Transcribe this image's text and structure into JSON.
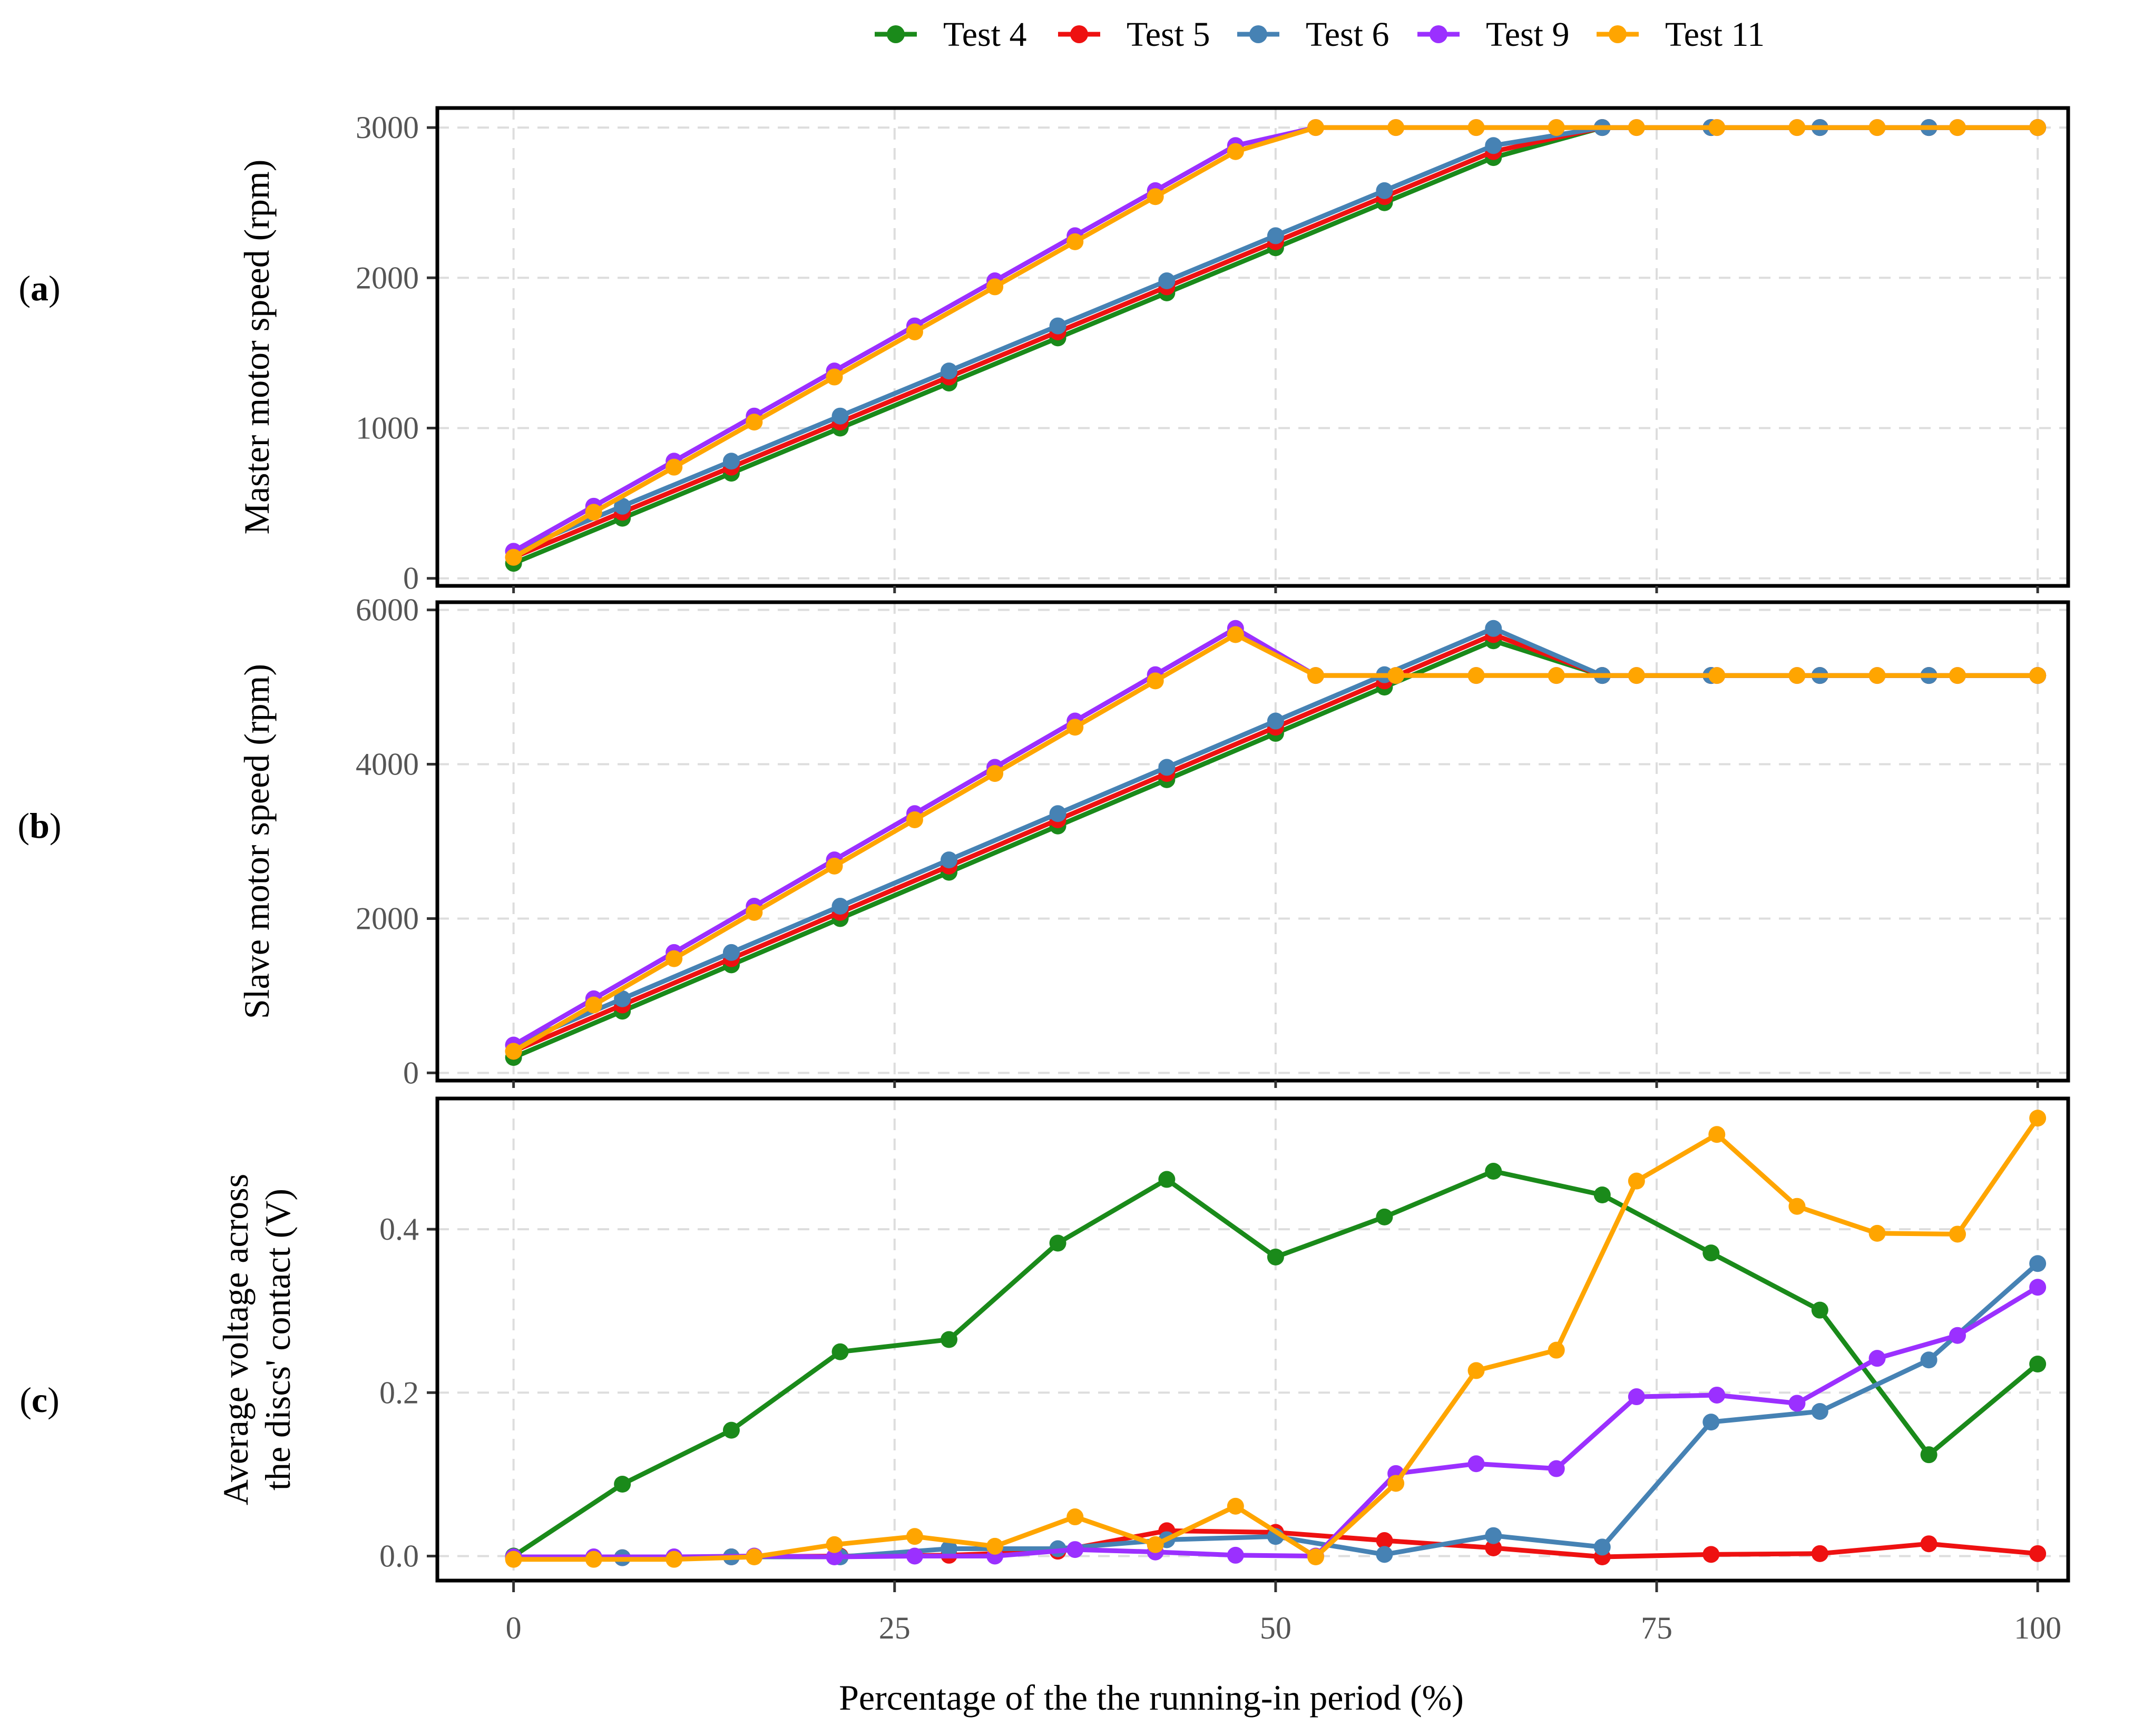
{
  "chart_data": {
    "type": "line",
    "xlabel": "Percentage of the the running-in period (%)",
    "xlim": [
      -5,
      102
    ],
    "xticks": [
      0,
      25,
      50,
      75,
      100
    ],
    "legend": {
      "placement": "top-center",
      "entries": [
        "Test 4",
        "Test 5",
        "Test 6",
        "Test 9",
        "Test 11"
      ]
    },
    "series_colors": {
      "Test 4": "#1a8a1a",
      "Test 5": "#ee1111",
      "Test 6": "#4682b4",
      "Test 9": "#9b30ff",
      "Test 11": "#ffa500"
    },
    "panels": [
      {
        "id": "a",
        "label_open": "(",
        "label_letter": "a",
        "label_close": ")",
        "ylabel_lines": [
          "Master motor speed (rpm)"
        ],
        "ylim": [
          -50,
          3130
        ],
        "yticks": [
          0,
          1000,
          2000,
          3000
        ],
        "series": [
          {
            "name": "Test 4",
            "x": [
              0,
              7.14,
              14.29,
              21.43,
              28.57,
              35.71,
              42.86,
              50,
              57.14,
              64.29,
              71.43,
              78.57,
              85.71,
              92.86,
              100
            ],
            "y": [
              100,
              400,
              700,
              1000,
              1300,
              1600,
              1900,
              2200,
              2500,
              2800,
              3000,
              3000,
              3000,
              3000,
              3000
            ]
          },
          {
            "name": "Test 5",
            "x": [
              0,
              7.14,
              14.29,
              21.43,
              28.57,
              35.71,
              42.86,
              50,
              57.14,
              64.29,
              71.43,
              78.57,
              85.71,
              92.86,
              100
            ],
            "y": [
              140,
              440,
              740,
              1040,
              1340,
              1640,
              1940,
              2240,
              2540,
              2840,
              3000,
              3000,
              3000,
              3000,
              3000
            ]
          },
          {
            "name": "Test 6",
            "x": [
              0,
              7.14,
              14.29,
              21.43,
              28.57,
              35.71,
              42.86,
              50,
              57.14,
              64.29,
              71.43,
              78.57,
              85.71,
              92.86,
              100
            ],
            "y": [
              180,
              480,
              780,
              1080,
              1380,
              1680,
              1980,
              2280,
              2580,
              2880,
              3000,
              3000,
              3000,
              3000,
              3000
            ]
          },
          {
            "name": "Test 9",
            "x": [
              0,
              5.26,
              10.53,
              15.79,
              21.05,
              26.32,
              31.58,
              36.84,
              42.11,
              47.37,
              52.63,
              57.89,
              63.16,
              68.42,
              73.68,
              78.95,
              84.21,
              89.47,
              94.74,
              100
            ],
            "y": [
              180,
              480,
              780,
              1080,
              1380,
              1680,
              1980,
              2280,
              2580,
              2880,
              3000,
              3000,
              3000,
              3000,
              3000,
              3000,
              3000,
              3000,
              3000,
              3000
            ]
          },
          {
            "name": "Test 11",
            "x": [
              0,
              5.26,
              10.53,
              15.79,
              21.05,
              26.32,
              31.58,
              36.84,
              42.11,
              47.37,
              52.63,
              57.89,
              63.16,
              68.42,
              73.68,
              78.95,
              84.21,
              89.47,
              94.74,
              100
            ],
            "y": [
              140,
              440,
              740,
              1040,
              1340,
              1640,
              1940,
              2240,
              2540,
              2840,
              3000,
              3000,
              3000,
              3000,
              3000,
              3000,
              3000,
              3000,
              3000,
              3000
            ]
          }
        ]
      },
      {
        "id": "b",
        "label_open": "(",
        "label_letter": "b",
        "label_close": ")",
        "ylabel_lines": [
          "Slave motor speed (rpm)"
        ],
        "ylim": [
          -100,
          6100
        ],
        "yticks": [
          0,
          2000,
          4000,
          6000
        ],
        "series": [
          {
            "name": "Test 4",
            "x": [
              0,
              7.14,
              14.29,
              21.43,
              28.57,
              35.71,
              42.86,
              50,
              57.14,
              64.29,
              71.43,
              78.57,
              85.71,
              92.86,
              100
            ],
            "y": [
              200,
              800,
              1400,
              2000,
              2600,
              3200,
              3800,
              4400,
              5000,
              5600,
              5150,
              5150,
              5150,
              5150,
              5150
            ]
          },
          {
            "name": "Test 5",
            "x": [
              0,
              7.14,
              14.29,
              21.43,
              28.57,
              35.71,
              42.86,
              50,
              57.14,
              64.29,
              71.43,
              78.57,
              85.71,
              92.86,
              100
            ],
            "y": [
              280,
              880,
              1480,
              2080,
              2680,
              3280,
              3880,
              4480,
              5080,
              5680,
              5150,
              5150,
              5150,
              5150,
              5150
            ]
          },
          {
            "name": "Test 6",
            "x": [
              0,
              7.14,
              14.29,
              21.43,
              28.57,
              35.71,
              42.86,
              50,
              57.14,
              64.29,
              71.43,
              78.57,
              85.71,
              92.86,
              100
            ],
            "y": [
              360,
              960,
              1560,
              2160,
              2760,
              3360,
              3960,
              4560,
              5160,
              5760,
              5150,
              5150,
              5150,
              5150,
              5150
            ]
          },
          {
            "name": "Test 9",
            "x": [
              0,
              5.26,
              10.53,
              15.79,
              21.05,
              26.32,
              31.58,
              36.84,
              42.11,
              47.37,
              52.63,
              57.89,
              63.16,
              68.42,
              73.68,
              78.95,
              84.21,
              89.47,
              94.74,
              100
            ],
            "y": [
              360,
              960,
              1560,
              2160,
              2760,
              3360,
              3960,
              4560,
              5160,
              5760,
              5150,
              5150,
              5150,
              5150,
              5150,
              5150,
              5150,
              5150,
              5150,
              5150
            ]
          },
          {
            "name": "Test 11",
            "x": [
              0,
              5.26,
              10.53,
              15.79,
              21.05,
              26.32,
              31.58,
              36.84,
              42.11,
              47.37,
              52.63,
              57.89,
              63.16,
              68.42,
              73.68,
              78.95,
              84.21,
              89.47,
              94.74,
              100
            ],
            "y": [
              280,
              880,
              1480,
              2080,
              2680,
              3280,
              3880,
              4480,
              5080,
              5680,
              5150,
              5150,
              5150,
              5150,
              5150,
              5150,
              5150,
              5150,
              5150,
              5150
            ]
          }
        ]
      },
      {
        "id": "c",
        "label_open": "(",
        "label_letter": "c",
        "label_close": ")",
        "ylabel_lines": [
          "Average voltage across",
          "the discs' contact (V)"
        ],
        "ylim": [
          -0.03,
          0.56
        ],
        "yticks": [
          0.0,
          0.2,
          0.4
        ],
        "ytick_labels": [
          "0.0",
          "0.2",
          "0.4"
        ],
        "series": [
          {
            "name": "Test 4",
            "x": [
              0,
              7.14,
              14.29,
              21.43,
              28.57,
              35.71,
              42.86,
              50,
              57.14,
              64.29,
              71.43,
              78.57,
              85.71,
              92.86,
              100
            ],
            "y": [
              0.0,
              0.088,
              0.154,
              0.25,
              0.265,
              0.383,
              0.461,
              0.366,
              0.415,
              0.471,
              0.442,
              0.371,
              0.301,
              0.124,
              0.235
            ]
          },
          {
            "name": "Test 5",
            "x": [
              0,
              7.14,
              14.29,
              21.43,
              28.57,
              35.71,
              42.86,
              50,
              57.14,
              64.29,
              71.43,
              78.57,
              85.71,
              92.86,
              100
            ],
            "y": [
              -0.002,
              -0.002,
              -0.001,
              0.0,
              0.001,
              0.006,
              0.031,
              0.029,
              0.019,
              0.01,
              -0.001,
              0.002,
              0.003,
              0.015,
              0.003
            ]
          },
          {
            "name": "Test 6",
            "x": [
              0,
              7.14,
              14.29,
              21.43,
              28.57,
              35.71,
              42.86,
              50,
              57.14,
              64.29,
              71.43,
              78.57,
              85.71,
              92.86,
              100
            ],
            "y": [
              -0.001,
              -0.002,
              -0.001,
              -0.001,
              0.009,
              0.009,
              0.02,
              0.024,
              0.002,
              0.025,
              0.011,
              0.164,
              0.177,
              0.24,
              0.358
            ]
          },
          {
            "name": "Test 9",
            "x": [
              0,
              5.26,
              10.53,
              15.79,
              21.05,
              26.32,
              31.58,
              36.84,
              42.11,
              47.37,
              52.63,
              57.89,
              63.16,
              68.42,
              73.68,
              78.95,
              84.21,
              89.47,
              94.74,
              100
            ],
            "y": [
              -0.001,
              -0.001,
              -0.001,
              0.0,
              -0.001,
              0.0,
              0.0,
              0.008,
              0.005,
              0.001,
              0.0,
              0.101,
              0.113,
              0.107,
              0.195,
              0.197,
              0.187,
              0.242,
              0.27,
              0.329
            ]
          },
          {
            "name": "Test 11",
            "x": [
              0,
              5.26,
              10.53,
              15.79,
              21.05,
              26.32,
              31.58,
              36.84,
              42.11,
              47.37,
              52.63,
              57.89,
              63.16,
              68.42,
              73.68,
              78.95,
              84.21,
              89.47,
              94.74,
              100
            ],
            "y": [
              -0.004,
              -0.004,
              -0.004,
              -0.001,
              0.014,
              0.024,
              0.012,
              0.048,
              0.014,
              0.061,
              -0.001,
              0.089,
              0.227,
              0.252,
              0.459,
              0.516,
              0.428,
              0.395,
              0.394,
              0.536
            ]
          }
        ]
      }
    ]
  }
}
